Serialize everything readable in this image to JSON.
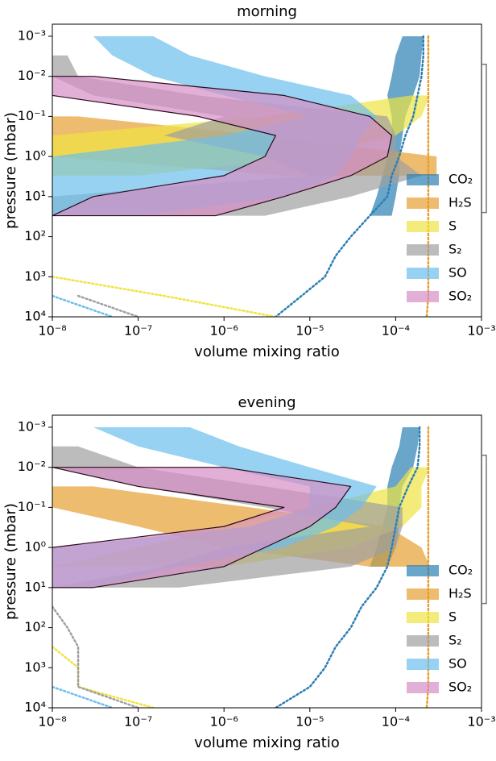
{
  "chart_data": [
    {
      "type": "band",
      "title": "morning",
      "xlabel": "volume mixing ratio",
      "ylabel": "pressure (mbar)",
      "log_x": true,
      "log_y": true,
      "legend": "lower right",
      "xlim": [
        1e-08,
        0.001
      ],
      "ylim": [
        10000,
        0.0005
      ],
      "xticks": [
        {
          "value": 1e-08,
          "label": "10⁻⁸"
        },
        {
          "value": 1e-07,
          "label": "10⁻⁷"
        },
        {
          "value": 1e-06,
          "label": "10⁻⁶"
        },
        {
          "value": 1e-05,
          "label": "10⁻⁵"
        },
        {
          "value": 0.0001,
          "label": "10⁻⁴"
        },
        {
          "value": 0.001,
          "label": "10⁻³"
        }
      ],
      "yticks": [
        {
          "value": 0.001,
          "label": "10⁻³"
        },
        {
          "value": 0.01,
          "label": "10⁻²"
        },
        {
          "value": 0.1,
          "label": "10⁻¹"
        },
        {
          "value": 1,
          "label": "10⁰"
        },
        {
          "value": 10,
          "label": "10¹"
        },
        {
          "value": 100,
          "label": "10²"
        },
        {
          "value": 1000,
          "label": "10³"
        },
        {
          "value": 10000,
          "label": "10⁴"
        }
      ],
      "bracket": [
        0.005,
        25
      ],
      "y": [
        0.001,
        0.003,
        0.01,
        0.03,
        0.1,
        0.3,
        1,
        3,
        10,
        30,
        100,
        300,
        1000,
        3000,
        10000
      ],
      "series": [
        {
          "name": "CO₂",
          "color": "#2b7fb4",
          "lower": [
            0.00012,
            0.0001,
            9e-05,
            8e-05,
            9e-05,
            9e-05,
            8e-05,
            7e-05,
            6e-05,
            5e-05,
            null,
            null,
            null,
            null,
            null
          ],
          "upper": [
            0.00021,
            0.0002,
            0.00019,
            0.00016,
            0.00013,
            0.00012,
            0.00011,
            0.00011,
            0.0001,
            9e-05,
            null,
            null,
            null,
            null,
            null
          ],
          "profile": [
            0.00021,
            0.00021,
            0.0002,
            0.00018,
            0.00016,
            0.00013,
            0.00011,
            9e-05,
            8e-05,
            5e-05,
            3e-05,
            2e-05,
            1.5e-05,
            8e-06,
            4e-06
          ]
        },
        {
          "name": "H₂S",
          "color": "#e69f30",
          "lower": [
            null,
            null,
            null,
            null,
            1e-08,
            1e-08,
            1e-08,
            5e-06,
            null,
            null,
            null,
            null,
            null,
            null,
            null
          ],
          "upper": [
            null,
            null,
            null,
            null,
            2e-08,
            3e-06,
            0.0003,
            0.0003,
            null,
            null,
            null,
            null,
            null,
            null,
            null
          ],
          "profile": [
            0.00024,
            0.00024,
            0.00024,
            0.00024,
            0.00024,
            0.00024,
            0.00024,
            0.00024,
            0.00024,
            0.00024,
            0.00024,
            0.00024,
            0.00024,
            0.00024,
            0.00023
          ]
        },
        {
          "name": "S",
          "color": "#f0e442",
          "lower": [
            null,
            null,
            null,
            0.00015,
            3e-06,
            1e-08,
            1e-08,
            1e-08,
            null,
            null,
            null,
            null,
            null,
            null,
            null
          ],
          "upper": [
            null,
            null,
            null,
            0.00025,
            0.0002,
            0.0001,
            1e-05,
            1e-07,
            null,
            null,
            null,
            null,
            null,
            null,
            null
          ],
          "profile": [
            null,
            null,
            null,
            null,
            null,
            null,
            null,
            null,
            null,
            null,
            null,
            null,
            1e-08,
            2e-07,
            4e-06
          ]
        },
        {
          "name": "S₂",
          "color": "#a0a0a0",
          "lower": [
            null,
            1e-08,
            1e-08,
            3e-08,
            1e-06,
            2e-07,
            3e-06,
            1e-05,
            1e-08,
            1e-08,
            null,
            null,
            null,
            null,
            null
          ],
          "upper": [
            null,
            1.5e-08,
            2e-08,
            5e-07,
            8e-05,
            0.0001,
            0.0001,
            0.0002,
            3e-05,
            3e-06,
            null,
            null,
            null,
            null,
            null
          ],
          "profile": [
            null,
            null,
            null,
            null,
            null,
            null,
            null,
            null,
            null,
            null,
            null,
            null,
            null,
            2e-08,
            1e-07
          ]
        },
        {
          "name": "SO",
          "color": "#6cbfec",
          "lower": [
            3e-08,
            5e-08,
            1.5e-07,
            1e-06,
            1e-05,
            1e-06,
            1e-08,
            1e-08,
            1e-08,
            1e-08,
            null,
            null,
            null,
            null,
            null
          ],
          "upper": [
            1.5e-07,
            4e-07,
            3e-06,
            3e-05,
            6e-05,
            4e-05,
            3e-05,
            2e-05,
            5e-06,
            1e-07,
            null,
            null,
            null,
            null,
            null
          ],
          "profile": [
            null,
            null,
            null,
            null,
            null,
            null,
            null,
            null,
            null,
            null,
            null,
            null,
            null,
            1e-08,
            5e-08
          ]
        },
        {
          "name": "SO₂",
          "color": "#d58ec4",
          "lower": [
            null,
            null,
            1e-08,
            1e-08,
            5e-07,
            4e-06,
            3e-06,
            1e-06,
            3e-08,
            1e-08,
            null,
            null,
            null,
            null,
            null
          ],
          "upper": [
            null,
            null,
            3e-08,
            5e-06,
            5e-05,
            9e-05,
            8e-05,
            3e-05,
            5e-06,
            8e-07,
            null,
            null,
            null,
            null,
            null
          ]
        }
      ]
    },
    {
      "type": "band",
      "title": "evening",
      "xlabel": "volume mixing ratio",
      "ylabel": "pressure (mbar)",
      "log_x": true,
      "log_y": true,
      "legend": "lower right",
      "xlim": [
        1e-08,
        0.001
      ],
      "ylim": [
        10000,
        0.0005
      ],
      "xticks": [
        {
          "value": 1e-08,
          "label": "10⁻⁸"
        },
        {
          "value": 1e-07,
          "label": "10⁻⁷"
        },
        {
          "value": 1e-06,
          "label": "10⁻⁶"
        },
        {
          "value": 1e-05,
          "label": "10⁻⁵"
        },
        {
          "value": 0.0001,
          "label": "10⁻⁴"
        },
        {
          "value": 0.001,
          "label": "10⁻³"
        }
      ],
      "yticks": [
        {
          "value": 0.001,
          "label": "10⁻³"
        },
        {
          "value": 0.01,
          "label": "10⁻²"
        },
        {
          "value": 0.1,
          "label": "10⁻¹"
        },
        {
          "value": 1,
          "label": "10⁰"
        },
        {
          "value": 10,
          "label": "10¹"
        },
        {
          "value": 100,
          "label": "10²"
        },
        {
          "value": 1000,
          "label": "10³"
        },
        {
          "value": 10000,
          "label": "10⁴"
        }
      ],
      "bracket": [
        0.005,
        25
      ],
      "y": [
        0.001,
        0.003,
        0.01,
        0.03,
        0.1,
        0.3,
        1,
        3,
        10,
        30,
        100,
        300,
        1000,
        3000,
        10000
      ],
      "series": [
        {
          "name": "CO₂",
          "color": "#2b7fb4",
          "lower": [
            0.00012,
            0.00011,
            9e-05,
            8e-05,
            8e-05,
            7e-05,
            6e-05,
            5e-05,
            null,
            null,
            null,
            null,
            null,
            null,
            null
          ],
          "upper": [
            0.00019,
            0.00018,
            0.00016,
            0.00012,
            0.00011,
            0.00011,
            0.0001,
            8e-05,
            null,
            null,
            null,
            null,
            null,
            null,
            null
          ],
          "profile": [
            0.00019,
            0.00019,
            0.00018,
            0.00014,
            0.00011,
            0.0001,
            9e-05,
            8e-05,
            6e-05,
            4e-05,
            3e-05,
            2e-05,
            1.5e-05,
            1e-05,
            4e-06
          ]
        },
        {
          "name": "H₂S",
          "color": "#e69f30",
          "lower": [
            null,
            null,
            null,
            1e-08,
            1e-08,
            1e-07,
            1e-06,
            5e-05,
            null,
            null,
            null,
            null,
            null,
            null,
            null
          ],
          "upper": [
            null,
            null,
            null,
            3e-08,
            2e-06,
            8e-05,
            0.0002,
            0.00025,
            null,
            null,
            null,
            null,
            null,
            null,
            null
          ],
          "profile": [
            0.00024,
            0.00024,
            0.00024,
            0.00024,
            0.00024,
            0.00024,
            0.00024,
            0.00024,
            0.00024,
            0.00024,
            0.00024,
            0.00024,
            0.00024,
            0.00024,
            0.00023
          ]
        },
        {
          "name": "S",
          "color": "#f0e442",
          "lower": [
            null,
            null,
            0.00015,
            0.0001,
            1e-05,
            1e-06,
            1e-07,
            1e-08,
            null,
            null,
            null,
            null,
            null,
            null,
            null
          ],
          "upper": [
            null,
            null,
            0.00025,
            0.0002,
            0.0002,
            0.00012,
            3e-05,
            1e-06,
            null,
            null,
            null,
            null,
            null,
            null,
            null
          ],
          "profile": [
            null,
            null,
            null,
            null,
            null,
            null,
            null,
            null,
            null,
            null,
            null,
            1e-08,
            2e-08,
            2e-08,
            1.5e-07
          ]
        },
        {
          "name": "S₂",
          "color": "#a0a0a0",
          "lower": [
            null,
            1e-08,
            1e-08,
            1e-07,
            3e-06,
            5e-05,
            1e-06,
            2e-07,
            1e-08,
            null,
            null,
            null,
            null,
            null,
            null
          ],
          "upper": [
            null,
            2e-08,
            1e-07,
            3e-06,
            0.00012,
            0.00012,
            0.0001,
            3e-05,
            3e-07,
            null,
            null,
            null,
            null,
            null,
            null
          ],
          "profile": [
            null,
            null,
            null,
            null,
            null,
            null,
            null,
            null,
            null,
            1e-08,
            1.5e-08,
            2e-08,
            2e-08,
            2e-08,
            1e-07
          ]
        },
        {
          "name": "SO",
          "color": "#6cbfec",
          "lower": [
            3e-08,
            1e-07,
            1e-06,
            1e-05,
            1e-05,
            2e-06,
            1e-08,
            1e-08,
            1e-08,
            null,
            null,
            null,
            null,
            null,
            null
          ],
          "upper": [
            4e-07,
            1.5e-06,
            1e-05,
            6e-05,
            4e-05,
            2e-05,
            5e-06,
            3e-07,
            3e-08,
            null,
            null,
            null,
            null,
            null,
            null
          ],
          "profile": [
            null,
            null,
            null,
            null,
            null,
            null,
            null,
            null,
            null,
            null,
            null,
            null,
            null,
            1e-08,
            5e-08
          ]
        },
        {
          "name": "SO₂",
          "color": "#d58ec4",
          "lower": [
            null,
            null,
            1e-08,
            1e-07,
            5e-06,
            1e-06,
            1e-08,
            1e-08,
            1e-08,
            null,
            null,
            null,
            null,
            null,
            null
          ],
          "upper": [
            null,
            null,
            1e-06,
            3e-05,
            2e-05,
            1e-05,
            3e-06,
            1e-06,
            3e-08,
            null,
            null,
            null,
            null,
            null,
            null
          ]
        }
      ]
    }
  ]
}
